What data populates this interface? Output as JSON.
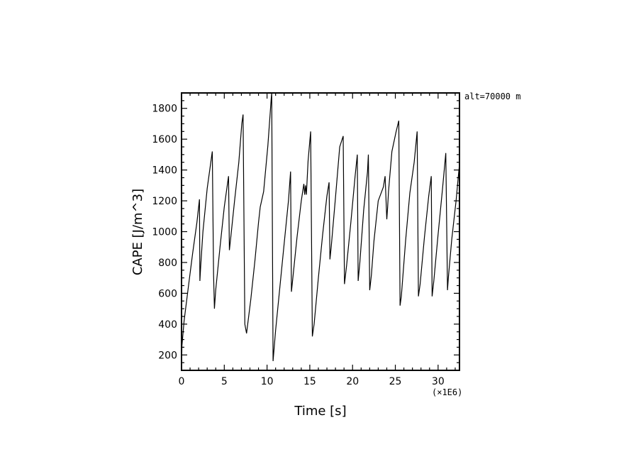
{
  "chart_data": {
    "type": "line",
    "title": "",
    "annotation": "alt=70000 m",
    "xlabel": "Time [s]",
    "ylabel": "CAPE [J/m^3]",
    "x_multiplier": "(×1E6)",
    "xlim": [
      0,
      32.5
    ],
    "ylim": [
      100,
      1900
    ],
    "grid": false,
    "x_ticks": [
      0,
      5,
      10,
      15,
      20,
      25,
      30
    ],
    "x_tick_labels": [
      "0",
      "5",
      "10",
      "15",
      "20",
      "25",
      "30"
    ],
    "y_ticks": [
      200,
      400,
      600,
      800,
      1000,
      1200,
      1400,
      1600,
      1800
    ],
    "y_tick_labels": [
      "200",
      "400",
      "600",
      "800",
      "1000",
      "1200",
      "1400",
      "1600",
      "1800"
    ],
    "series": [
      {
        "color": "#000000",
        "x": [
          0.0,
          0.05,
          0.3,
          0.8,
          1.3,
          1.8,
          2.1,
          2.15,
          2.25,
          2.5,
          3.0,
          3.6,
          3.75,
          3.85,
          4.0,
          4.5,
          5.0,
          5.5,
          5.6,
          5.75,
          6.2,
          6.7,
          7.05,
          7.2,
          7.4,
          7.6,
          8.1,
          8.6,
          9.0,
          9.2,
          9.6,
          10.1,
          10.5,
          10.55,
          10.7,
          11.0,
          11.5,
          12.0,
          12.5,
          12.75,
          12.85,
          13.0,
          13.5,
          14.0,
          14.3,
          14.4,
          14.5,
          14.6,
          14.8,
          15.1,
          15.3,
          15.5,
          16.0,
          16.5,
          17.0,
          17.25,
          17.35,
          17.5,
          18.0,
          18.5,
          18.9,
          19.05,
          19.3,
          19.8,
          20.3,
          20.55,
          20.65,
          20.85,
          21.3,
          21.75,
          21.85,
          22.0,
          22.2,
          22.5,
          23.0,
          23.6,
          23.8,
          24.0,
          24.1,
          24.2,
          24.6,
          25.1,
          25.4,
          25.55,
          25.7,
          26.2,
          26.7,
          27.2,
          27.55,
          27.7,
          27.9,
          28.4,
          28.9,
          29.2,
          29.3,
          29.5,
          30.0,
          30.5,
          30.8,
          30.9,
          31.1,
          31.2,
          31.6,
          32.1,
          32.5
        ],
        "y": [
          100,
          260,
          420,
          640,
          860,
          1060,
          1210,
          680,
          780,
          1000,
          1280,
          1520,
          720,
          500,
          620,
          900,
          1160,
          1360,
          880,
          960,
          1200,
          1450,
          1700,
          1760,
          400,
          340,
          560,
          820,
          1060,
          1160,
          1260,
          1560,
          1870,
          1900,
          160,
          360,
          640,
          920,
          1200,
          1390,
          610,
          690,
          960,
          1200,
          1310,
          1240,
          1300,
          1240,
          1460,
          1650,
          320,
          400,
          700,
          980,
          1230,
          1320,
          820,
          900,
          1220,
          1550,
          1620,
          660,
          780,
          1060,
          1360,
          1500,
          680,
          800,
          1140,
          1390,
          1500,
          620,
          720,
          940,
          1200,
          1290,
          1360,
          1080,
          1160,
          1260,
          1520,
          1650,
          1720,
          520,
          580,
          940,
          1250,
          1450,
          1650,
          580,
          660,
          960,
          1230,
          1360,
          580,
          680,
          980,
          1270,
          1450,
          1510,
          620,
          700,
          950,
          1200,
          1440
        ]
      }
    ]
  }
}
